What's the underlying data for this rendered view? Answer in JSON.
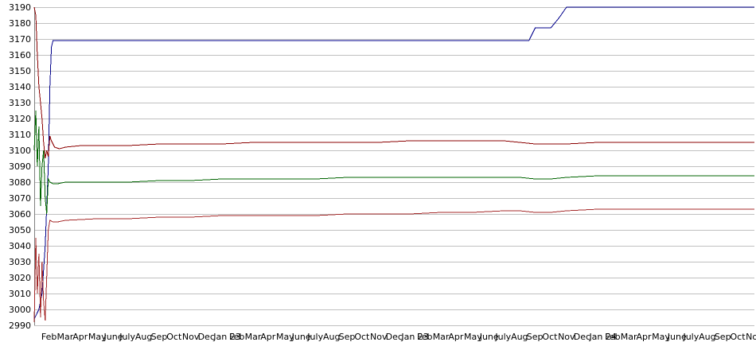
{
  "chart_data": {
    "type": "line",
    "title": "",
    "xlabel": "",
    "ylabel": "",
    "ylim": [
      2990,
      3190
    ],
    "y_ticks": [
      3190,
      3180,
      3170,
      3160,
      3150,
      3140,
      3130,
      3120,
      3110,
      3100,
      3090,
      3080,
      3070,
      3060,
      3050,
      3040,
      3030,
      3020,
      3010,
      3000,
      2990
    ],
    "grid": true,
    "x_tick_labels": [
      "Feb",
      "Mar",
      "Apr",
      "May",
      "June",
      "July",
      "Aug",
      "Sep",
      "Oct",
      "Nov",
      "Dec",
      "Jan 23",
      "Feb",
      "Mar",
      "Apr",
      "May",
      "June",
      "July",
      "Aug",
      "Sep",
      "Oct",
      "Nov",
      "Dec",
      "Jan 23",
      "Feb",
      "Mar",
      "Apr",
      "May",
      "June",
      "July",
      "Aug",
      "Sep",
      "Oct",
      "Nov",
      "Dec",
      "Jan 24",
      "Feb",
      "Mar",
      "Apr",
      "May",
      "June",
      "July",
      "Aug",
      "Sep",
      "Oct",
      "Nov"
    ],
    "x_range_months": [
      0,
      46
    ],
    "series": [
      {
        "color": "#00008b",
        "x": [
          0,
          0.3,
          0.5,
          0.7,
          0.9,
          1.0,
          1.1,
          1.2,
          5,
          10,
          15,
          20,
          25,
          30,
          31.6,
          32,
          33.0,
          33.5,
          34,
          40,
          46
        ],
        "values": [
          2994,
          3000,
          3010,
          3040,
          3090,
          3140,
          3165,
          3169,
          3169,
          3169,
          3169,
          3169,
          3169,
          3169,
          3169,
          3177,
          3177,
          3183,
          3190,
          3190,
          3190
        ]
      },
      {
        "color": "#8b0000",
        "x": [
          0,
          0.1,
          0.2,
          0.3,
          0.4,
          0.5,
          0.6,
          0.7,
          0.8,
          0.9,
          1.0,
          1.1,
          1.3,
          1.6,
          2,
          3,
          4,
          5,
          6,
          8,
          10,
          12,
          14,
          16,
          18,
          20,
          22,
          24,
          26,
          28,
          30,
          31,
          32,
          33,
          34,
          36,
          38,
          40,
          42,
          44,
          46
        ],
        "values": [
          3190,
          3185,
          3160,
          3140,
          3130,
          3120,
          3105,
          3095,
          3100,
          3096,
          3109,
          3106,
          3102,
          3101,
          3102,
          3103,
          3103,
          3103,
          3103,
          3104,
          3104,
          3104,
          3105,
          3105,
          3105,
          3105,
          3105,
          3106,
          3106,
          3106,
          3106,
          3105,
          3104,
          3104,
          3104,
          3105,
          3105,
          3105,
          3105,
          3105,
          3105
        ]
      },
      {
        "color": "#006400",
        "x": [
          0,
          0.1,
          0.2,
          0.3,
          0.4,
          0.5,
          0.6,
          0.7,
          0.8,
          0.9,
          1.0,
          1.2,
          1.5,
          2,
          4,
          6,
          8,
          10,
          12,
          14,
          16,
          18,
          20,
          22,
          24,
          26,
          28,
          30,
          31,
          32,
          33,
          34,
          36,
          38,
          40,
          42,
          44,
          46
        ],
        "values": [
          3100,
          3125,
          3090,
          3115,
          3065,
          3090,
          3100,
          3070,
          3060,
          3082,
          3080,
          3079,
          3079,
          3080,
          3080,
          3080,
          3081,
          3081,
          3082,
          3082,
          3082,
          3082,
          3083,
          3083,
          3083,
          3083,
          3083,
          3083,
          3083,
          3082,
          3082,
          3083,
          3084,
          3084,
          3084,
          3084,
          3084,
          3084
        ]
      },
      {
        "color": "#a52a2a",
        "x": [
          0,
          0.1,
          0.2,
          0.3,
          0.4,
          0.5,
          0.6,
          0.7,
          0.8,
          0.9,
          1.0,
          1.2,
          1.5,
          2,
          4,
          6,
          8,
          10,
          12,
          14,
          16,
          18,
          20,
          22,
          24,
          26,
          28,
          30,
          31,
          32,
          33,
          34,
          36,
          38,
          40,
          42,
          44,
          46
        ],
        "values": [
          2992,
          3045,
          3010,
          3035,
          2995,
          3030,
          3005,
          2993,
          3020,
          3050,
          3056,
          3055,
          3055,
          3056,
          3057,
          3057,
          3058,
          3058,
          3059,
          3059,
          3059,
          3059,
          3060,
          3060,
          3060,
          3061,
          3061,
          3062,
          3062,
          3061,
          3061,
          3062,
          3063,
          3063,
          3063,
          3063,
          3063,
          3063
        ]
      }
    ]
  }
}
